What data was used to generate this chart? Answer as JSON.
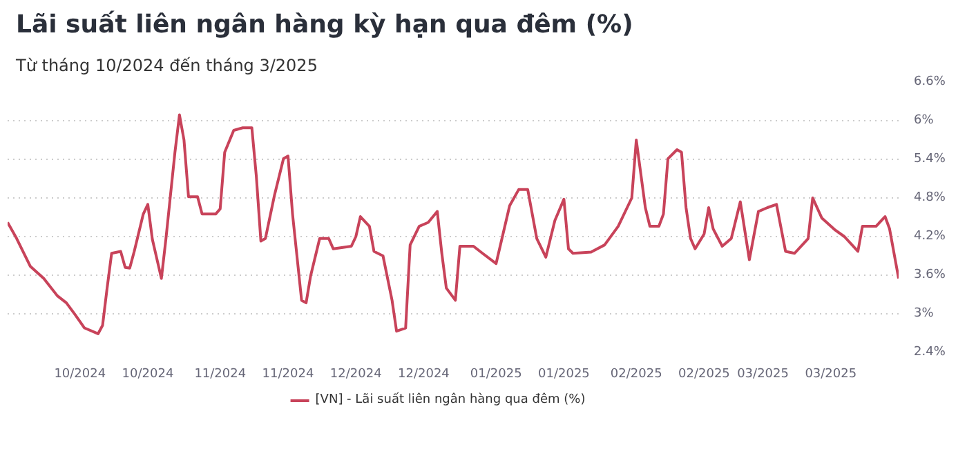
{
  "chart_data": {
    "type": "line",
    "title": "Lãi suất liên ngân hàng kỳ hạn qua đêm (%)",
    "subtitle": "Từ tháng 10/2024 đến tháng 3/2025",
    "x": [
      "2024-09-15",
      "2024-09-17",
      "2024-09-20",
      "2024-09-23",
      "2024-09-26",
      "2024-09-28",
      "2024-09-30",
      "2024-10-02",
      "2024-10-05",
      "2024-10-06",
      "2024-10-07",
      "2024-10-08",
      "2024-10-10",
      "2024-10-11",
      "2024-10-12",
      "2024-10-13",
      "2024-10-15",
      "2024-10-16",
      "2024-10-17",
      "2024-10-19",
      "2024-10-20",
      "2024-10-22",
      "2024-10-23",
      "2024-10-24",
      "2024-10-25",
      "2024-10-27",
      "2024-10-28",
      "2024-10-31",
      "2024-11-01",
      "2024-11-02",
      "2024-11-04",
      "2024-11-06",
      "2024-11-08",
      "2024-11-09",
      "2024-11-10",
      "2024-11-11",
      "2024-11-13",
      "2024-11-15",
      "2024-11-16",
      "2024-11-17",
      "2024-11-19",
      "2024-11-20",
      "2024-11-21",
      "2024-11-23",
      "2024-11-25",
      "2024-11-26",
      "2024-11-30",
      "2024-12-01",
      "2024-12-02",
      "2024-12-04",
      "2024-12-05",
      "2024-12-07",
      "2024-12-09",
      "2024-12-10",
      "2024-12-12",
      "2024-12-13",
      "2024-12-15",
      "2024-12-17",
      "2024-12-19",
      "2024-12-20",
      "2024-12-21",
      "2024-12-23",
      "2024-12-24",
      "2024-12-27",
      "2024-12-29",
      "2025-01-01",
      "2025-01-04",
      "2025-01-06",
      "2025-01-08",
      "2025-01-10",
      "2025-01-12",
      "2025-01-14",
      "2025-01-16",
      "2025-01-17",
      "2025-01-18",
      "2025-01-22",
      "2025-01-25",
      "2025-01-28",
      "2025-01-31",
      "2025-02-01",
      "2025-02-03",
      "2025-02-04",
      "2025-02-06",
      "2025-02-07",
      "2025-02-08",
      "2025-02-10",
      "2025-02-11",
      "2025-02-12",
      "2025-02-13",
      "2025-02-14",
      "2025-02-16",
      "2025-02-17",
      "2025-02-18",
      "2025-02-20",
      "2025-02-22",
      "2025-02-24",
      "2025-02-26",
      "2025-02-28",
      "2025-03-02",
      "2025-03-04",
      "2025-03-06",
      "2025-03-08",
      "2025-03-11",
      "2025-03-12",
      "2025-03-14",
      "2025-03-17",
      "2025-03-19",
      "2025-03-22",
      "2025-03-23",
      "2025-03-26",
      "2025-03-28",
      "2025-03-29",
      "2025-03-31"
    ],
    "series": [
      {
        "name": "[VN] - Lãi suất liên ngân hàng qua đêm (%)",
        "color": "#c8435a",
        "values": [
          4.42,
          4.17,
          3.74,
          3.55,
          3.28,
          3.17,
          2.98,
          2.78,
          2.69,
          2.82,
          3.4,
          3.94,
          3.97,
          3.72,
          3.71,
          3.97,
          4.55,
          4.7,
          4.16,
          3.55,
          4.16,
          5.51,
          6.09,
          5.7,
          4.82,
          4.82,
          4.55,
          4.55,
          4.63,
          5.51,
          5.85,
          5.89,
          5.89,
          5.13,
          4.13,
          4.17,
          4.84,
          5.41,
          5.45,
          4.55,
          3.21,
          3.17,
          3.59,
          4.17,
          4.17,
          4.01,
          4.05,
          4.2,
          4.51,
          4.36,
          3.97,
          3.9,
          3.21,
          2.73,
          2.78,
          4.07,
          4.36,
          4.42,
          4.59,
          3.94,
          3.4,
          3.21,
          4.05,
          4.05,
          3.94,
          3.78,
          4.68,
          4.93,
          4.93,
          4.17,
          3.88,
          4.45,
          4.78,
          4.01,
          3.94,
          3.96,
          4.07,
          4.36,
          4.8,
          5.7,
          4.65,
          4.36,
          4.36,
          4.55,
          5.41,
          5.55,
          5.51,
          4.65,
          4.17,
          4.01,
          4.24,
          4.65,
          4.32,
          4.05,
          4.17,
          4.74,
          3.84,
          4.59,
          4.65,
          4.7,
          3.97,
          3.94,
          4.17,
          4.8,
          4.49,
          4.3,
          4.2,
          3.97,
          4.36,
          4.36,
          4.51,
          4.32,
          3.55
        ]
      }
    ],
    "xlim": [
      "2024-09-15",
      "2025-03-31"
    ],
    "xticks": [
      {
        "value": "2024-10-01",
        "label": "10/2024"
      },
      {
        "value": "2024-10-16",
        "label": "10/2024"
      },
      {
        "value": "2024-11-01",
        "label": "11/2024"
      },
      {
        "value": "2024-11-16",
        "label": "11/2024"
      },
      {
        "value": "2024-12-01",
        "label": "12/2024"
      },
      {
        "value": "2024-12-16",
        "label": "12/2024"
      },
      {
        "value": "2025-01-01",
        "label": "01/2025"
      },
      {
        "value": "2025-01-16",
        "label": "01/2025"
      },
      {
        "value": "2025-02-01",
        "label": "02/2025"
      },
      {
        "value": "2025-02-16",
        "label": "02/2025"
      },
      {
        "value": "2025-03-01",
        "label": "03/2025"
      },
      {
        "value": "2025-03-16",
        "label": "03/2025"
      }
    ],
    "ylim": [
      2.4,
      6.6
    ],
    "yticks": [
      {
        "value": 2.4,
        "label": "2.4%"
      },
      {
        "value": 3,
        "label": "3%"
      },
      {
        "value": 3.6,
        "label": "3.6%"
      },
      {
        "value": 4.2,
        "label": "4.2%"
      },
      {
        "value": 4.8,
        "label": "4.8%"
      },
      {
        "value": 5.4,
        "label": "5.4%"
      },
      {
        "value": 6,
        "label": "6%"
      },
      {
        "value": 6.6,
        "label": "6.6%"
      }
    ],
    "grid": "y",
    "legend": "bottom",
    "marker": "none",
    "line_style": "solid"
  }
}
